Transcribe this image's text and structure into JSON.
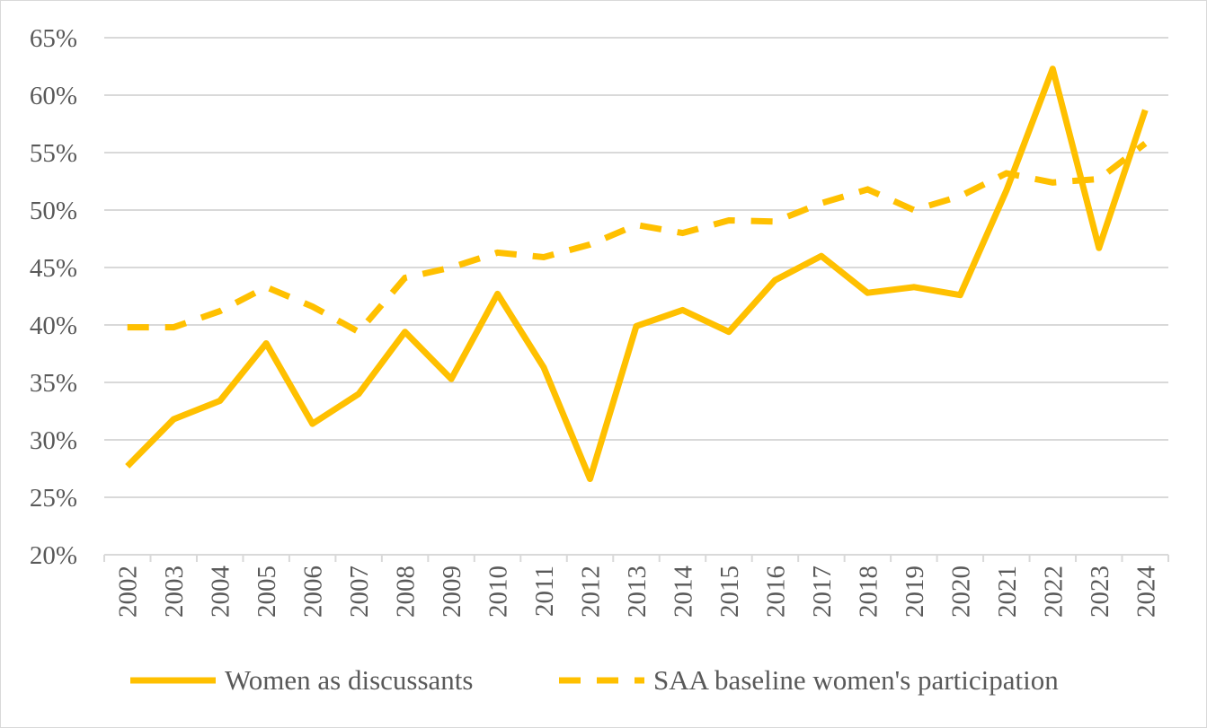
{
  "chart_data": {
    "type": "line",
    "title": "",
    "xlabel": "",
    "ylabel": "",
    "x": [
      "2002",
      "2003",
      "2004",
      "2005",
      "2006",
      "2007",
      "2008",
      "2009",
      "2010",
      "2011",
      "2012",
      "2013",
      "2014",
      "2015",
      "2016",
      "2017",
      "2018",
      "2019",
      "2020",
      "2021",
      "2022",
      "2023",
      "2024"
    ],
    "ylim": [
      20,
      65
    ],
    "yticks": [
      20,
      25,
      30,
      35,
      40,
      45,
      50,
      55,
      60,
      65
    ],
    "ytick_labels": [
      "20%",
      "25%",
      "30%",
      "35%",
      "40%",
      "45%",
      "50%",
      "55%",
      "60%",
      "65%"
    ],
    "grid": true,
    "legend_position": "bottom",
    "series": [
      {
        "name": "Women as discussants",
        "style": "solid",
        "color": "#FFC000",
        "values": [
          27.7,
          31.8,
          33.4,
          38.4,
          31.4,
          34.0,
          39.4,
          35.3,
          42.7,
          36.3,
          26.6,
          39.9,
          41.3,
          39.4,
          43.9,
          46.0,
          42.8,
          43.3,
          42.6,
          51.7,
          62.3,
          46.7,
          58.7
        ]
      },
      {
        "name": "SAA baseline women's participation",
        "style": "dashed",
        "color": "#FFC000",
        "values": [
          39.8,
          39.8,
          41.2,
          43.3,
          41.6,
          39.4,
          44.1,
          45.0,
          46.3,
          45.9,
          47.0,
          48.7,
          48.0,
          49.1,
          49.0,
          50.6,
          51.8,
          50.0,
          51.2,
          53.2,
          52.4,
          52.7,
          55.8
        ]
      }
    ]
  }
}
